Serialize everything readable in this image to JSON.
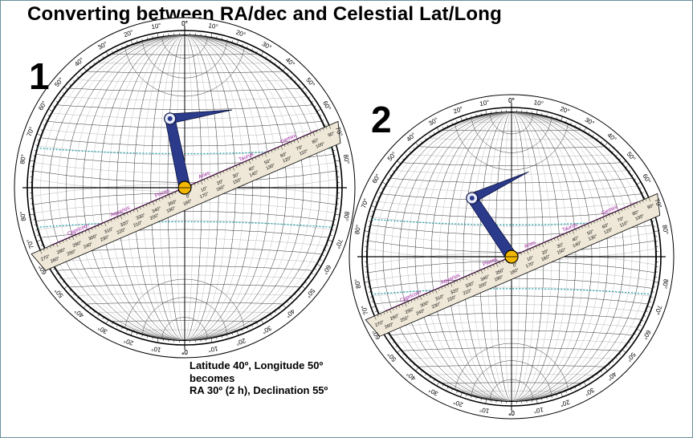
{
  "title": "Converting between RA/dec and Celestial Lat/Long",
  "panels": [
    {
      "number": "1"
    },
    {
      "number": "2"
    }
  ],
  "caption": {
    "line1": "Latitude 40º, Longitude 50º",
    "line2": "becomes",
    "line3": "RA 30º (2 h), Declination 55º"
  },
  "ring_labels": [
    "0°",
    "10°",
    "20°",
    "30°",
    "40°",
    "50°",
    "60°",
    "70°",
    "80°"
  ],
  "ruler": {
    "top": [
      "270°",
      "280°",
      "290°",
      "300°",
      "310°",
      "320°",
      "330°",
      "340°",
      "350°",
      "0°",
      "10°",
      "20°",
      "30°",
      "40°",
      "50°",
      "60°",
      "70°",
      "80°",
      "90°"
    ],
    "bottom": [
      "260°",
      "250°",
      "240°",
      "230°",
      "220°",
      "210°",
      "200°",
      "190°",
      "180°",
      "170°",
      "160°",
      "150°",
      "140°",
      "130°",
      "120°",
      "110°",
      "100°"
    ]
  },
  "zodiac": [
    "Capricorn",
    "Aquarius",
    "Pisces",
    "Aries",
    "Taurus",
    "Gemini"
  ],
  "colors": {
    "pointer": "#2b3a8a",
    "pivot": "#f2b800",
    "ecliptic": "#a020a0",
    "tropic": "#2aa0a8",
    "ruler": "#efe8d8",
    "frame": "#6a8f9a"
  }
}
